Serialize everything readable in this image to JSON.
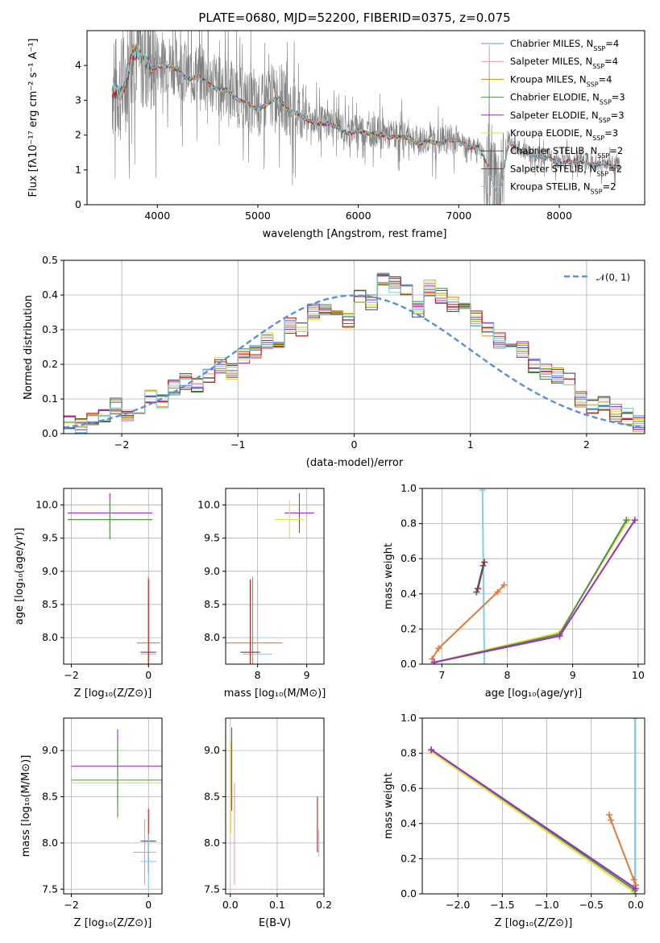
{
  "chart_data": [
    {
      "type": "line",
      "title": "PLATE=0680, MJD=52200, FIBERID=0375, z=0.075",
      "xlabel": "wavelength [Angstrom, rest frame]",
      "ylabel": "Flux [f_λ 10^-17 erg cm^-2 s^-1 A^-1]",
      "xlim": [
        3300,
        8850
      ],
      "ylim": [
        0,
        5
      ],
      "xticks": [
        "4000",
        "5000",
        "6000",
        "7000",
        "8000"
      ],
      "yticks": [
        "0",
        "1",
        "2",
        "3",
        "4"
      ],
      "data_color": "#808080",
      "data_flux": {
        "x": [
          3550,
          3600,
          3650,
          3700,
          3750,
          3800,
          3850,
          3900,
          3950,
          4000,
          4100,
          4200,
          4300,
          4400,
          4500,
          4600,
          4700,
          4800,
          4900,
          5000,
          5100,
          5200,
          5300,
          5400,
          5500,
          5600,
          5700,
          5800,
          5900,
          6000,
          6100,
          6200,
          6300,
          6400,
          6500,
          6600,
          6700,
          6800,
          6900,
          7000,
          7100,
          7200,
          7300,
          7400,
          7500,
          7600,
          7700,
          7800,
          7900,
          8000,
          8100,
          8200,
          8300,
          8400,
          8500,
          8600
        ],
        "y": [
          3.4,
          3.3,
          3.3,
          3.8,
          4.5,
          4.5,
          4.3,
          4.2,
          4.0,
          4.1,
          4.1,
          4.0,
          3.7,
          3.8,
          3.6,
          3.4,
          3.4,
          3.1,
          3.0,
          2.8,
          3.0,
          3.2,
          2.8,
          2.7,
          2.5,
          2.4,
          2.4,
          2.3,
          2.1,
          2.2,
          2.1,
          2.1,
          2.0,
          2.0,
          2.0,
          1.8,
          1.9,
          1.8,
          1.9,
          1.9,
          1.7,
          1.7,
          1.1,
          0.4,
          1.8,
          1.6,
          1.5,
          1.4,
          1.4,
          1.2,
          1.3,
          1.3,
          1.2,
          1.2,
          1.2,
          1.1
        ]
      },
      "legend_position": "top-right",
      "series": [
        {
          "name": "Chabrier MILES, N_SSP=4",
          "color": "#6a8fd3",
          "x_range": [
            3550,
            7350
          ]
        },
        {
          "name": "Salpeter MILES, N_SSP=4",
          "color": "#f08fb8",
          "x_range": [
            3550,
            7350
          ]
        },
        {
          "name": "Kroupa MILES, N_SSP=4",
          "color": "#c59416",
          "x_range": [
            3550,
            7350
          ]
        },
        {
          "name": "Chabrier ELODIE, N_SSP=3",
          "color": "#4d8f4d",
          "x_range": [
            3900,
            6800
          ]
        },
        {
          "name": "Salpeter ELODIE, N_SSP=3",
          "color": "#9b30c0",
          "x_range": [
            3900,
            6800
          ]
        },
        {
          "name": "Kroupa ELODIE, N_SSP=3",
          "color": "#e1e13a",
          "x_range": [
            3900,
            6800
          ]
        },
        {
          "name": "Chabrier STELIB, N_SSP=2",
          "color": "#555555",
          "x_range": [
            3550,
            8600
          ]
        },
        {
          "name": "Salpeter STELIB, N_SSP=2",
          "color": "#c0201c",
          "x_range": [
            3550,
            8600
          ]
        },
        {
          "name": "Kroupa STELIB, N_SSP=2",
          "color": "#7fd0e0",
          "x_range": [
            3550,
            8600
          ]
        }
      ]
    },
    {
      "type": "line",
      "title": "",
      "xlabel": "(data-model)/error",
      "ylabel": "Normed distribution",
      "xlim": [
        -2.5,
        2.5
      ],
      "ylim": [
        0,
        0.5
      ],
      "xticks": [
        "−2",
        "−1",
        "0",
        "1",
        "2"
      ],
      "yticks": [
        "0.0",
        "0.1",
        "0.2",
        "0.3",
        "0.4",
        "0.5"
      ],
      "grid": true,
      "legend_position": "top-right",
      "gaussian_label": "𝒩(0, 1)",
      "gaussian_color": "#5b8fd9",
      "histogram": {
        "bin_edges_start": -2.5,
        "bin_width": 0.1,
        "values": [
          0.03,
          0.02,
          0.04,
          0.05,
          0.08,
          0.06,
          0.08,
          0.11,
          0.09,
          0.13,
          0.15,
          0.14,
          0.17,
          0.2,
          0.18,
          0.22,
          0.24,
          0.27,
          0.26,
          0.31,
          0.3,
          0.35,
          0.36,
          0.34,
          0.33,
          0.4,
          0.38,
          0.45,
          0.43,
          0.42,
          0.36,
          0.42,
          0.4,
          0.37,
          0.36,
          0.33,
          0.3,
          0.27,
          0.26,
          0.24,
          0.2,
          0.18,
          0.17,
          0.15,
          0.1,
          0.08,
          0.09,
          0.06,
          0.05,
          0.03
        ]
      }
    },
    {
      "type": "scatter",
      "xlabel": "Z [log10(Z/Z⊙)]",
      "ylabel": "age  [log10(age/yr)]",
      "xlim": [
        -2.2,
        0.35
      ],
      "ylim": [
        7.6,
        10.25
      ],
      "xticks": [
        "−2",
        "0"
      ],
      "yticks": [
        "8.0",
        "8.5",
        "9.0",
        "9.5",
        "10.0"
      ],
      "points": [
        {
          "x": -1.0,
          "y": 9.88,
          "xerr": 1.1,
          "yerr": 0.3,
          "color": "#9b30c0"
        },
        {
          "x": -1.0,
          "y": 9.78,
          "xerr": 1.1,
          "yerr": 0.3,
          "color": "#e1e13a"
        },
        {
          "x": -1.0,
          "y": 9.78,
          "xerr": 1.1,
          "yerr": 0.3,
          "color": "#4d8f4d"
        },
        {
          "x": 0.0,
          "y": 7.92,
          "xerr": 0.3,
          "yerr": 1.0,
          "color": "#e07a3a"
        },
        {
          "x": 0.0,
          "y": 7.75,
          "xerr": 0.2,
          "yerr": 1.1,
          "color": "#7fd0e0"
        },
        {
          "x": 0.0,
          "y": 7.78,
          "xerr": 0.2,
          "yerr": 1.1,
          "color": "#c0201c"
        }
      ]
    },
    {
      "type": "scatter",
      "xlabel": "mass [log10(M/M⊙)]",
      "ylabel": "",
      "xlim": [
        7.35,
        9.35
      ],
      "ylim": [
        7.6,
        10.25
      ],
      "xticks": [
        "8",
        "9"
      ],
      "yticks": [
        "8.0",
        "8.5",
        "9.0",
        "9.5",
        "10.0"
      ],
      "points": [
        {
          "x": 8.85,
          "y": 9.88,
          "xerr": 0.3,
          "yerr": 0.3,
          "color": "#9b30c0"
        },
        {
          "x": 8.65,
          "y": 9.78,
          "xerr": 0.3,
          "yerr": 0.3,
          "color": "#e1e13a"
        },
        {
          "x": 7.9,
          "y": 7.92,
          "xerr": 0.6,
          "yerr": 1.0,
          "color": "#e07a3a"
        },
        {
          "x": 8.0,
          "y": 7.75,
          "xerr": 0.3,
          "yerr": 1.1,
          "color": "#7fd0e0"
        },
        {
          "x": 7.85,
          "y": 7.78,
          "xerr": 0.2,
          "yerr": 1.1,
          "color": "#c0201c"
        }
      ]
    },
    {
      "type": "line",
      "xlabel": "age  [log10(age/yr)]",
      "ylabel": "mass weight",
      "xlim": [
        6.7,
        10.1
      ],
      "ylim": [
        0,
        1
      ],
      "xticks": [
        "7",
        "8",
        "9",
        "10"
      ],
      "yticks": [
        "0.0",
        "0.2",
        "0.4",
        "0.6",
        "0.8",
        "1.0"
      ],
      "series": [
        {
          "color": "#7fd0e0",
          "x": [
            7.62,
            7.65
          ],
          "y": [
            0.99,
            0.0
          ]
        },
        {
          "color": "#c0201c",
          "x": [
            7.55,
            7.65
          ],
          "y": [
            0.43,
            0.58
          ]
        },
        {
          "color": "#555555",
          "x": [
            7.53,
            7.63
          ],
          "y": [
            0.41,
            0.56
          ]
        },
        {
          "color": "#e07a3a",
          "x": [
            6.85,
            6.95,
            7.85,
            7.95
          ],
          "y": [
            0.03,
            0.09,
            0.41,
            0.45
          ]
        },
        {
          "color": "#e1e13a",
          "x": [
            6.88,
            8.8,
            9.85
          ],
          "y": [
            0.01,
            0.18,
            0.82
          ]
        },
        {
          "color": "#4d8f4d",
          "x": [
            6.88,
            8.8,
            9.82
          ],
          "y": [
            0.01,
            0.17,
            0.82
          ]
        },
        {
          "color": "#9b30c0",
          "x": [
            6.88,
            8.8,
            9.95
          ],
          "y": [
            0.01,
            0.16,
            0.82
          ]
        }
      ]
    },
    {
      "type": "scatter",
      "xlabel": "Z [log10(Z/Z⊙)]",
      "ylabel": "mass [log10(M/M⊙)]",
      "xlim": [
        -2.2,
        0.35
      ],
      "ylim": [
        7.45,
        9.35
      ],
      "xticks": [
        "−2",
        "0"
      ],
      "yticks": [
        "7.5",
        "8.0",
        "8.5",
        "9.0"
      ],
      "points": [
        {
          "x": -0.8,
          "y": 8.83,
          "xerr": 1.2,
          "yerr": 0.4,
          "color": "#9b30c0"
        },
        {
          "x": -0.8,
          "y": 8.65,
          "xerr": 1.2,
          "yerr": 0.4,
          "color": "#e1e13a"
        },
        {
          "x": -0.8,
          "y": 8.68,
          "xerr": 1.2,
          "yerr": 0.4,
          "color": "#4d8f4d"
        },
        {
          "x": -0.1,
          "y": 7.9,
          "xerr": 0.3,
          "yerr": 0.35,
          "color": "#f08fb8"
        },
        {
          "x": 0.0,
          "y": 8.02,
          "xerr": 0.2,
          "yerr": 0.35,
          "color": "#c0201c"
        },
        {
          "x": 0.0,
          "y": 7.8,
          "xerr": 0.2,
          "yerr": 0.3,
          "color": "#7fd0e0"
        }
      ]
    },
    {
      "type": "scatter",
      "xlabel": "E(B-V)",
      "ylabel": "",
      "xlim": [
        -0.01,
        0.2
      ],
      "ylim": [
        7.45,
        9.35
      ],
      "xticks": [
        "0.0",
        "0.1",
        "0.2"
      ],
      "yticks": [
        "7.5",
        "8.0",
        "8.5",
        "9.0"
      ],
      "points": [
        {
          "x": 0.003,
          "y": 8.8,
          "yerr": 0.45,
          "color": "#9b30c0"
        },
        {
          "x": 0.001,
          "y": 8.6,
          "yerr": 0.5,
          "color": "#e1e13a"
        },
        {
          "x": 0.009,
          "y": 8.1,
          "yerr": 0.55,
          "color": "#f08fb8"
        },
        {
          "x": 0.186,
          "y": 8.2,
          "yerr": 0.3,
          "color": "#c0201c"
        },
        {
          "x": 0.189,
          "y": 8.0,
          "yerr": 0.15,
          "color": "#7fd0e0"
        }
      ]
    },
    {
      "type": "line",
      "xlabel": "Z [log10(Z/Z⊙)]",
      "ylabel": "mass weight",
      "xlim": [
        -2.4,
        0.1
      ],
      "ylim": [
        0,
        1
      ],
      "xticks": [
        "−2.0",
        "−1.5",
        "−1.0",
        "−0.5",
        "0.0"
      ],
      "yticks": [
        "0.0",
        "0.2",
        "0.4",
        "0.6",
        "0.8",
        "1.0"
      ],
      "series": [
        {
          "color": "#7fd0e0",
          "x": [
            -0.01,
            -0.01
          ],
          "y": [
            0.0,
            1.0
          ]
        },
        {
          "color": "#e07a3a",
          "x": [
            -0.3,
            -0.28,
            0.0,
            -0.02
          ],
          "y": [
            0.45,
            0.42,
            0.05,
            0.08
          ]
        },
        {
          "color": "#e1e13a",
          "x": [
            -2.3,
            -0.02
          ],
          "y": [
            0.81,
            0.01
          ]
        },
        {
          "color": "#4d8f4d",
          "x": [
            -2.3,
            -0.01
          ],
          "y": [
            0.82,
            0.02
          ]
        },
        {
          "color": "#9b30c0",
          "x": [
            -2.3,
            0.0
          ],
          "y": [
            0.82,
            0.03
          ]
        }
      ]
    }
  ]
}
